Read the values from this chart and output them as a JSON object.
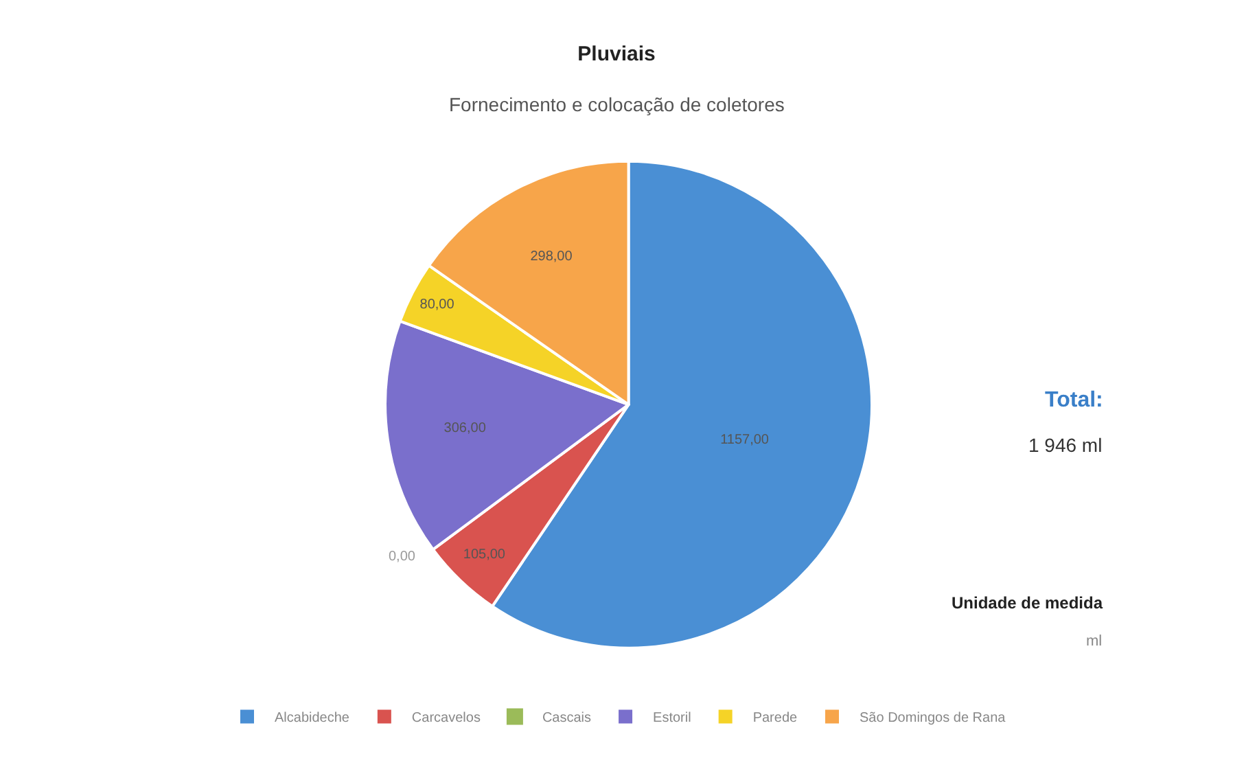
{
  "chart_data": {
    "type": "pie",
    "title": "Pluviais",
    "subtitle": "Fornecimento e colocação de coletores",
    "categories": [
      "Alcabideche",
      "Carcavelos",
      "Cascais",
      "Estoril",
      "Parede",
      "São Domingos de Rana"
    ],
    "values": [
      1157,
      105,
      0,
      306,
      80,
      298
    ],
    "value_labels": [
      "1157,00",
      "105,00",
      "0,00",
      "306,00",
      "80,00",
      "298,00"
    ],
    "colors": [
      "#4a8fd4",
      "#d9534f",
      "#9bbb59",
      "#7a6fcc",
      "#f5d327",
      "#f7a54a"
    ],
    "legend": "bottom",
    "annotations": [
      "Total:",
      "1 946 ml",
      "Unidade de medida",
      "ml"
    ]
  }
}
